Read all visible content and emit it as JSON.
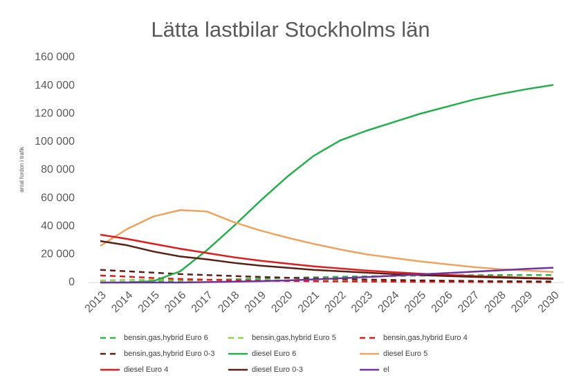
{
  "chart_data": {
    "type": "line",
    "title": "Lätta lastbilar Stockholms län",
    "y_label": "antal fordon i trafik",
    "categories": [
      "2013",
      "2014",
      "2015",
      "2016",
      "2017",
      "2018",
      "2019",
      "2020",
      "2021",
      "2022",
      "2023",
      "2024",
      "2025",
      "2026",
      "2027",
      "2028",
      "2029",
      "2030"
    ],
    "ylim": [
      0,
      160000
    ],
    "yticks": [
      0,
      {
        "value": 20000,
        "label": "20 000"
      },
      {
        "value": 40000,
        "label": "40 000"
      },
      {
        "value": 60000,
        "label": "60 000"
      },
      {
        "value": 80000,
        "label": "80 000"
      },
      {
        "value": 100000,
        "label": "100 000"
      },
      {
        "value": 120000,
        "label": "120 000"
      },
      {
        "value": 140000,
        "label": "140 000"
      },
      {
        "value": 160000,
        "label": "160 000"
      }
    ],
    "grid": false,
    "series": [
      {
        "name": "bensin,gas,hybrid Euro 6",
        "color": "#2db34a",
        "dashed": true,
        "values": [
          0,
          300,
          800,
          1300,
          1800,
          2300,
          2800,
          3300,
          3700,
          4100,
          4400,
          4700,
          4900,
          5100,
          5200,
          5300,
          5300,
          5300
        ]
      },
      {
        "name": "bensin,gas,hybrid Euro 5",
        "color": "#92d050",
        "dashed": true,
        "values": [
          1500,
          1800,
          1900,
          1900,
          1800,
          1700,
          1600,
          1500,
          1400,
          1300,
          1200,
          1100,
          1000,
          900,
          800,
          700,
          600,
          500
        ]
      },
      {
        "name": "bensin,gas,hybrid Euro 4",
        "color": "#e3191c",
        "dashed": true,
        "values": [
          5000,
          4200,
          3200,
          2500,
          2000,
          1600,
          1300,
          1100,
          900,
          800,
          700,
          600,
          500,
          450,
          400,
          350,
          300,
          300
        ]
      },
      {
        "name": "bensin,gas,hybrid Euro 0-3",
        "color": "#5a1e14",
        "dashed": true,
        "values": [
          9000,
          8000,
          7000,
          6000,
          5300,
          4600,
          4000,
          3400,
          2900,
          2500,
          2100,
          1800,
          1500,
          1300,
          1100,
          900,
          800,
          700
        ]
      },
      {
        "name": "diesel Euro 6",
        "color": "#22b04b",
        "dashed": false,
        "values": [
          0,
          0,
          1000,
          8000,
          23000,
          40000,
          58000,
          75000,
          90000,
          101000,
          108000,
          114000,
          120000,
          125000,
          130000,
          134000,
          137500,
          140500
        ]
      },
      {
        "name": "diesel Euro 5",
        "color": "#f0a35e",
        "dashed": false,
        "values": [
          26000,
          38000,
          47000,
          51500,
          50500,
          43000,
          37000,
          32000,
          27500,
          23500,
          20000,
          17500,
          15000,
          13000,
          11000,
          9500,
          8500,
          7500
        ]
      },
      {
        "name": "diesel Euro 4",
        "color": "#e3191c",
        "dashed": false,
        "values": [
          34000,
          31000,
          27500,
          24000,
          21000,
          18000,
          15500,
          13500,
          11500,
          10000,
          8500,
          7300,
          6300,
          5400,
          4600,
          4000,
          3400,
          3000
        ]
      },
      {
        "name": "diesel Euro 0-3",
        "color": "#5a1e14",
        "dashed": false,
        "values": [
          29500,
          26500,
          22000,
          18500,
          16500,
          14000,
          12000,
          10500,
          9000,
          8000,
          7000,
          6000,
          5300,
          4600,
          4000,
          3500,
          3000,
          2600
        ]
      },
      {
        "name": "el",
        "color": "#7030a0",
        "dashed": false,
        "values": [
          0,
          0,
          0,
          0,
          300,
          600,
          1000,
          1500,
          2200,
          3000,
          3900,
          4800,
          5800,
          6700,
          7700,
          8700,
          9700,
          10500
        ]
      }
    ]
  }
}
